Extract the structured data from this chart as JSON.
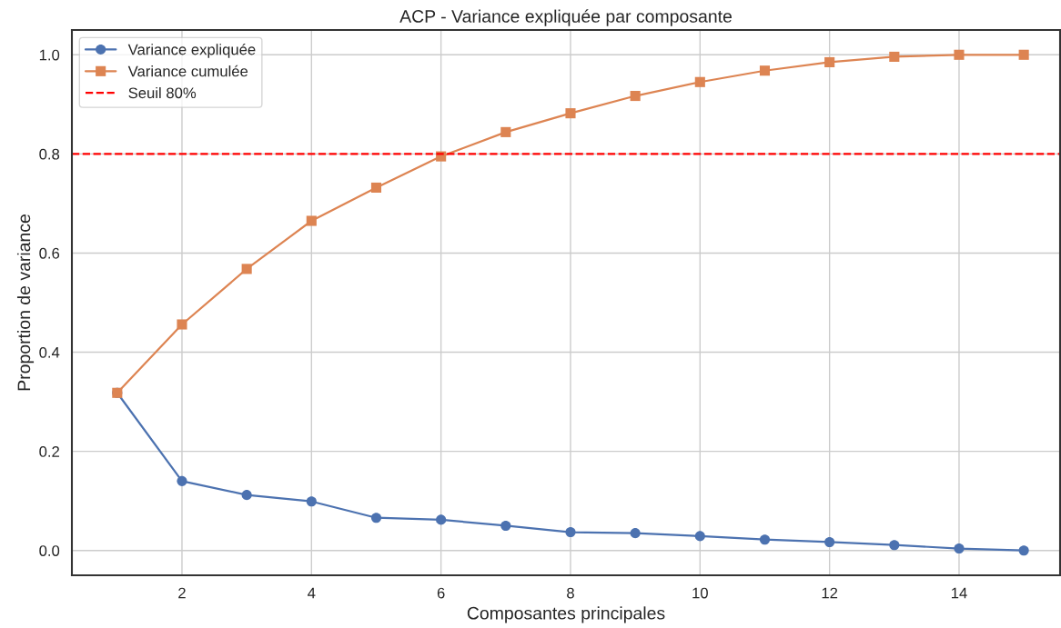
{
  "chart_data": {
    "type": "line",
    "title": "ACP - Variance expliquée par composante",
    "xlabel": "Composantes principales",
    "ylabel": "Proportion de variance",
    "x": [
      1,
      2,
      3,
      4,
      5,
      6,
      7,
      8,
      9,
      10,
      11,
      12,
      13,
      14,
      15
    ],
    "series": [
      {
        "name": "Variance expliquée",
        "color": "#4c72b0",
        "marker": "circle",
        "values": [
          0.318,
          0.14,
          0.112,
          0.099,
          0.066,
          0.062,
          0.05,
          0.037,
          0.035,
          0.029,
          0.022,
          0.017,
          0.011,
          0.004,
          0.0
        ]
      },
      {
        "name": "Variance cumulée",
        "color": "#dd8452",
        "marker": "square",
        "values": [
          0.318,
          0.456,
          0.568,
          0.665,
          0.732,
          0.795,
          0.844,
          0.882,
          0.917,
          0.945,
          0.968,
          0.985,
          0.996,
          1.0,
          1.0
        ]
      }
    ],
    "ref_lines": [
      {
        "axis": "y",
        "value": 0.8,
        "label": "Seuil 80%",
        "color": "#ff0000",
        "line_style": "dashed"
      }
    ],
    "xlim": [
      0.3,
      15.56
    ],
    "ylim": [
      -0.05,
      1.05
    ],
    "xticks": [
      2,
      4,
      6,
      8,
      10,
      12,
      14
    ],
    "yticks": [
      {
        "value": 0,
        "label": "0.0"
      },
      0.2,
      0.4,
      0.6,
      0.8,
      {
        "value": 1,
        "label": "1.0"
      }
    ],
    "grid": true,
    "legend": "top left"
  }
}
